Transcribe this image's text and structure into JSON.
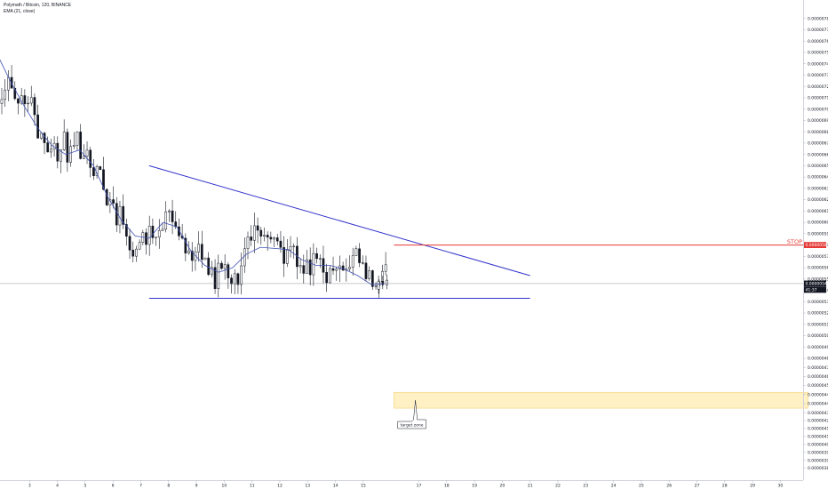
{
  "header": {
    "symbol": "Polymath / Bitcoin, 120, BINANCE",
    "indicator": "EMA (21, close)"
  },
  "colors": {
    "candle": "#131722",
    "ema": "#3f51b5",
    "trendline": "#3333cc",
    "stop": "#e53935",
    "zone_fill": "#fff1c4",
    "zone_border": "#f5d27a",
    "price_tag": "#131722"
  },
  "annotations": {
    "stop_label": "STOP",
    "stop_price_tag": "0.00000580",
    "target_label": "target zone",
    "last_price_tag": "0.00000546",
    "countdown_tag": "41:37"
  },
  "chart_data": {
    "type": "candlestick",
    "title": "Polymath / Bitcoin, 120, BINANCE",
    "xlabel": "",
    "ylabel": "",
    "ylim": [
      3.78e-06,
      7.9e-06
    ],
    "x_ticks": [
      "3",
      "4",
      "5",
      "6",
      "7",
      "8",
      "9",
      "10",
      "11",
      "12",
      "13",
      "14",
      "15",
      "17",
      "18",
      "19",
      "20",
      "21",
      "22",
      "23",
      "24",
      "25",
      "26",
      "27",
      "28",
      "29",
      "30"
    ],
    "y_ticks": [
      "0.00000780",
      "0.00000770",
      "0.00000760",
      "0.00000750",
      "0.00000740",
      "0.00000730",
      "0.00000720",
      "0.00000710",
      "0.00000700",
      "0.00000690",
      "0.00000680",
      "0.00000670",
      "0.00000660",
      "0.00000650",
      "0.00000640",
      "0.00000630",
      "0.00000620",
      "0.00000610",
      "0.00000600",
      "0.00000590",
      "0.00000580",
      "0.00000570",
      "0.00000560",
      "0.00000550",
      "0.00000540",
      "0.00000530",
      "0.00000520",
      "0.00000510",
      "0.00000500",
      "0.00000490",
      "0.00000480",
      "0.00000472",
      "0.00000464",
      "0.00000456",
      "0.00000448",
      "0.00000440",
      "0.00000432",
      "0.00000425",
      "0.00000418",
      "0.00000411",
      "0.00000404",
      "0.00000397",
      "0.00000390",
      "0.00000383"
    ],
    "series": [
      {
        "name": "EMA (21, close)",
        "style": "line",
        "x": [
          1.9,
          2.3,
          2.8,
          3.3,
          3.8,
          4.3,
          4.8,
          5.3,
          5.8,
          6.3,
          6.8,
          7.3,
          7.8,
          8.3,
          8.8,
          9.3,
          9.8,
          10.3,
          10.8,
          11.3,
          11.8,
          12.3,
          12.8,
          13.3,
          13.8,
          14.3,
          14.8,
          15.3,
          15.8
        ],
        "values": [
          7.45e-06,
          7.25e-06,
          7.03e-06,
          6.83e-06,
          6.68e-06,
          6.6e-06,
          6.64e-06,
          6.5e-06,
          6.23e-06,
          6.02e-06,
          5.88e-06,
          5.86e-06,
          6e-06,
          5.96e-06,
          5.75e-06,
          5.62e-06,
          5.56e-06,
          5.6e-06,
          5.72e-06,
          5.78e-06,
          5.77e-06,
          5.76e-06,
          5.67e-06,
          5.62e-06,
          5.62e-06,
          5.59e-06,
          5.53e-06,
          5.45e-06,
          5.46e-06
        ]
      }
    ],
    "candles_approx": {
      "x_start": 2.0,
      "x_end": 15.9,
      "start_price": 7.05e-06,
      "end_price": 5.46e-06,
      "high": 7.28e-06,
      "low": 5.28e-06
    },
    "trendlines": [
      {
        "name": "descending resistance",
        "from": [
          7.3,
          6.5e-06
        ],
        "to": [
          21.0,
          5.53e-06
        ]
      },
      {
        "name": "horizontal support",
        "from": [
          7.3,
          5.33e-06
        ],
        "to": [
          21.0,
          5.33e-06
        ]
      },
      {
        "name": "stop level",
        "from": [
          16.1,
          5.8e-06
        ],
        "to": [
          31.0,
          5.8e-06
        ]
      }
    ],
    "last_price": 5.46e-06,
    "target_zone": {
      "x_from": 16.1,
      "x_to": 31.0,
      "y_from": 4.36e-06,
      "y_to": 4.5e-06
    },
    "legend_position": "top-left",
    "grid": false
  }
}
